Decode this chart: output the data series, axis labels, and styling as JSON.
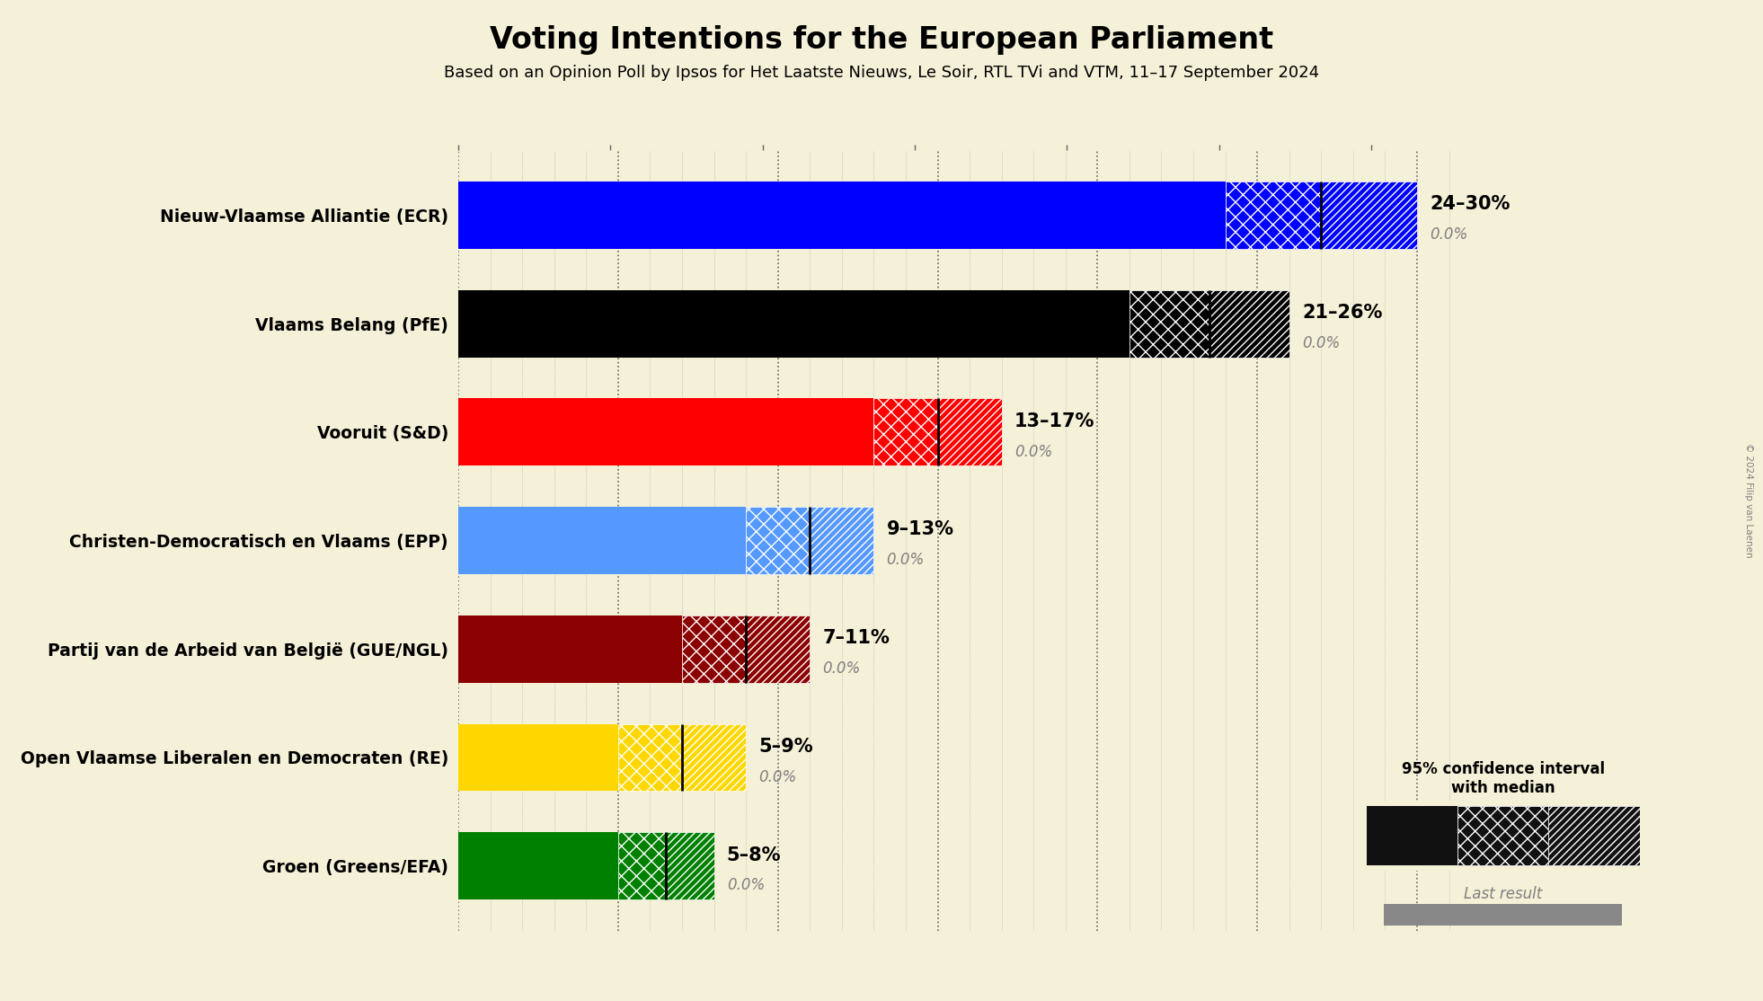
{
  "title": "Voting Intentions for the European Parliament",
  "subtitle": "Based on an Opinion Poll by Ipsos for Het Laatste Nieuws, Le Soir, RTL TVi and VTM, 11–17 September 2024",
  "copyright": "© 2024 Filip van Laenen",
  "background_color": "#f5f0d8",
  "parties": [
    {
      "name": "Nieuw-Vlaamse Alliantie (ECR)",
      "median": 27,
      "low": 24,
      "high": 30,
      "last": 0.0,
      "color": "#0000ff",
      "label": "24–30%"
    },
    {
      "name": "Vlaams Belang (PfE)",
      "median": 23.5,
      "low": 21,
      "high": 26,
      "last": 0.0,
      "color": "#000000",
      "label": "21–26%"
    },
    {
      "name": "Vooruit (S&D)",
      "median": 15,
      "low": 13,
      "high": 17,
      "last": 0.0,
      "color": "#ff0000",
      "label": "13–17%"
    },
    {
      "name": "Christen-Democratisch en Vlaams (EPP)",
      "median": 11,
      "low": 9,
      "high": 13,
      "last": 0.0,
      "color": "#5599ff",
      "label": "9–13%"
    },
    {
      "name": "Partij van de Arbeid van België (GUE/NGL)",
      "median": 9,
      "low": 7,
      "high": 11,
      "last": 0.0,
      "color": "#8b0000",
      "label": "7–11%"
    },
    {
      "name": "Open Vlaamse Liberalen en Democraten (RE)",
      "median": 7,
      "low": 5,
      "high": 9,
      "last": 0.0,
      "color": "#ffd700",
      "label": "5–9%"
    },
    {
      "name": "Groen (Greens/EFA)",
      "median": 6.5,
      "low": 5,
      "high": 8,
      "last": 0.0,
      "color": "#008000",
      "label": "5–8%"
    }
  ],
  "xmax": 32,
  "tick_interval": 5,
  "dotted_line_color": "#666666",
  "legend_title": "95% confidence interval\nwith median",
  "legend_last": "Last result"
}
